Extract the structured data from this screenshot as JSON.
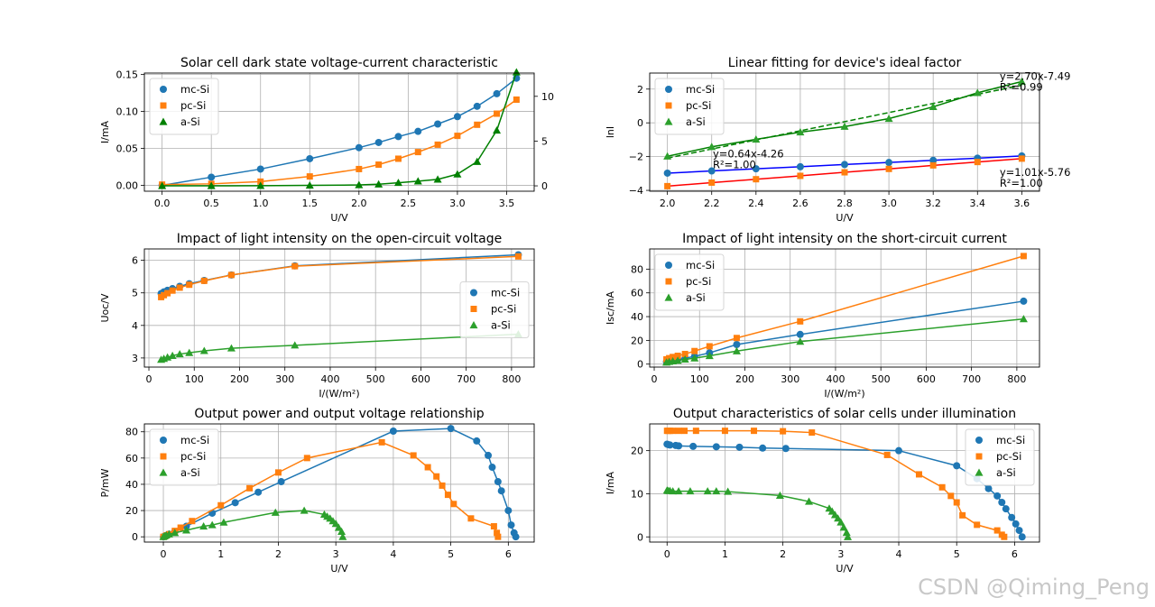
{
  "watermark": "CSDN @Qiming_Peng",
  "colors": {
    "mc": "#1f77b4",
    "pc": "#ff7f0e",
    "a": "#2ca02c",
    "darkgreen": "#008000",
    "blue": "#0000ff",
    "red": "#ff0000",
    "grid": "#b0b0b0"
  },
  "chart_data": [
    {
      "id": "dark",
      "type": "scatter",
      "title": "Solar cell dark state voltage-current characteristic",
      "xlabel": "U/V",
      "ylabel": "I/mA",
      "xlim": [
        -0.18,
        3.78
      ],
      "ylim": [
        -0.008,
        0.152
      ],
      "xticks": [
        0.0,
        0.5,
        1.0,
        1.5,
        2.0,
        2.5,
        3.0,
        3.5
      ],
      "xtick_labels": [
        "0.0",
        "0.5",
        "1.0",
        "1.5",
        "2.0",
        "2.5",
        "3.0",
        "3.5"
      ],
      "yticks": [
        0.0,
        0.05,
        0.1,
        0.15
      ],
      "ytick_labels": [
        "0.00",
        "0.05",
        "0.10",
        "0.15"
      ],
      "secondary_y": {
        "ylim": [
          -0.6,
          12.6
        ],
        "ticks": [
          0,
          5,
          10
        ],
        "tick_labels": [
          "0",
          "5",
          "10"
        ]
      },
      "legend": "upper-left",
      "series": [
        {
          "name": "mc-Si",
          "marker": "circle",
          "color": "#1f77b4",
          "line": true,
          "x": [
            0,
            0.5,
            1.0,
            1.5,
            2.0,
            2.2,
            2.4,
            2.6,
            2.8,
            3.0,
            3.2,
            3.4,
            3.6
          ],
          "y": [
            0.0,
            0.011,
            0.022,
            0.036,
            0.051,
            0.058,
            0.066,
            0.073,
            0.083,
            0.093,
            0.107,
            0.124,
            0.145
          ]
        },
        {
          "name": "pc-Si",
          "marker": "square",
          "color": "#ff7f0e",
          "line": true,
          "x": [
            0,
            0.5,
            1.0,
            1.5,
            2.0,
            2.2,
            2.4,
            2.6,
            2.8,
            3.0,
            3.2,
            3.4,
            3.6
          ],
          "y": [
            0.001,
            0.002,
            0.005,
            0.012,
            0.022,
            0.028,
            0.036,
            0.045,
            0.055,
            0.067,
            0.082,
            0.097,
            0.116
          ]
        },
        {
          "name": "a-Si",
          "marker": "triangle",
          "color": "#008000",
          "line": true,
          "axis": "secondary",
          "x": [
            0,
            0.5,
            1.0,
            1.5,
            2.0,
            2.2,
            2.4,
            2.6,
            2.8,
            3.0,
            3.2,
            3.4,
            3.6
          ],
          "y": [
            0.0,
            0.0,
            0.02,
            0.05,
            0.1,
            0.18,
            0.35,
            0.52,
            0.72,
            1.3,
            2.7,
            6.2,
            12.7
          ]
        }
      ]
    },
    {
      "id": "fit",
      "type": "scatter",
      "title": "Linear fitting for device's ideal factor",
      "xlabel": "U/V",
      "ylabel": "lnI",
      "xlim": [
        1.92,
        3.68
      ],
      "ylim": [
        -4.05,
        2.95
      ],
      "xticks": [
        2.0,
        2.2,
        2.4,
        2.6,
        2.8,
        3.0,
        3.2,
        3.4,
        3.6
      ],
      "xtick_labels": [
        "2.0",
        "2.2",
        "2.4",
        "2.6",
        "2.8",
        "3.0",
        "3.2",
        "3.4",
        "3.6"
      ],
      "yticks": [
        -4,
        -2,
        0,
        2
      ],
      "ytick_labels": [
        "−4",
        "−2",
        "0",
        "2"
      ],
      "legend": "upper-left",
      "series": [
        {
          "name": "mc-Si",
          "marker": "circle",
          "color": "#1f77b4",
          "fit_color": "#0000ff",
          "line": true,
          "x": [
            2.0,
            2.2,
            2.4,
            2.6,
            2.8,
            3.0,
            3.2,
            3.4,
            3.6
          ],
          "y": [
            -2.98,
            -2.85,
            -2.72,
            -2.6,
            -2.47,
            -2.35,
            -2.22,
            -2.09,
            -1.96
          ]
        },
        {
          "name": "pc-Si",
          "marker": "square",
          "color": "#ff7f0e",
          "fit_color": "#ff0000",
          "line": true,
          "x": [
            2.0,
            2.2,
            2.4,
            2.6,
            2.8,
            3.0,
            3.2,
            3.4,
            3.6
          ],
          "y": [
            -3.75,
            -3.54,
            -3.34,
            -3.14,
            -2.93,
            -2.73,
            -2.52,
            -2.32,
            -2.12
          ]
        },
        {
          "name": "a-Si",
          "marker": "triangle",
          "color": "#2ca02c",
          "fit_color": "#008000",
          "line": true,
          "dashed_fit": [
            [
              2.0,
              -2.09
            ],
            [
              3.6,
              2.23
            ]
          ],
          "x": [
            2.0,
            2.2,
            2.4,
            2.6,
            2.8,
            3.0,
            3.2,
            3.4,
            3.6
          ],
          "y": [
            -1.98,
            -1.42,
            -0.98,
            -0.55,
            -0.22,
            0.25,
            0.95,
            1.78,
            2.45
          ]
        }
      ],
      "annotations": [
        {
          "line1": "y=2.70x-7.49",
          "line2": "R²=0.99",
          "x": 3.5,
          "y": 2.55
        },
        {
          "line1": "y=0.64x-4.26",
          "line2": "R²=1.00",
          "x": 2.205,
          "y": -2.05
        },
        {
          "line1": "y=1.01x-5.76",
          "line2": "R²=1.00",
          "x": 3.5,
          "y": -3.15
        }
      ]
    },
    {
      "id": "voc",
      "type": "line",
      "title": "Impact of light intensity on the open-circuit voltage",
      "xlabel": "I/(W/m²)",
      "ylabel": "Uoc/V",
      "xlim": [
        -10,
        850
      ],
      "ylim": [
        2.72,
        6.35
      ],
      "xticks": [
        0,
        100,
        200,
        300,
        400,
        500,
        600,
        700,
        800
      ],
      "xtick_labels": [
        "0",
        "100",
        "200",
        "300",
        "400",
        "500",
        "600",
        "700",
        "800"
      ],
      "yticks": [
        3,
        4,
        5,
        6
      ],
      "ytick_labels": [
        "3",
        "4",
        "5",
        "6"
      ],
      "legend": "center-right",
      "series": [
        {
          "name": "mc-Si",
          "marker": "circle",
          "color": "#1f77b4",
          "line": true,
          "x": [
            27,
            33,
            41,
            52,
            68,
            89,
            122,
            182,
            322,
            815
          ],
          "y": [
            4.98,
            5.03,
            5.08,
            5.13,
            5.2,
            5.28,
            5.38,
            5.55,
            5.83,
            6.17
          ]
        },
        {
          "name": "pc-Si",
          "marker": "square",
          "color": "#ff7f0e",
          "line": true,
          "x": [
            27,
            33,
            41,
            52,
            68,
            89,
            122,
            182,
            322,
            815
          ],
          "y": [
            4.87,
            4.93,
            4.99,
            5.07,
            5.16,
            5.25,
            5.37,
            5.55,
            5.82,
            6.12
          ]
        },
        {
          "name": "a-Si",
          "marker": "triangle",
          "color": "#2ca02c",
          "line": true,
          "x": [
            27,
            33,
            41,
            52,
            68,
            89,
            122,
            182,
            322,
            815
          ],
          "y": [
            2.95,
            2.98,
            3.02,
            3.07,
            3.12,
            3.16,
            3.22,
            3.3,
            3.39,
            3.73
          ]
        }
      ]
    },
    {
      "id": "isc",
      "type": "line",
      "title": "Impact of light intensity on the short-circuit current",
      "xlabel": "I/(W/m²)",
      "ylabel": "Isc/mA",
      "xlim": [
        -10,
        850
      ],
      "ylim": [
        -2.5,
        97
      ],
      "xticks": [
        0,
        100,
        200,
        300,
        400,
        500,
        600,
        700,
        800
      ],
      "xtick_labels": [
        "0",
        "100",
        "200",
        "300",
        "400",
        "500",
        "600",
        "700",
        "800"
      ],
      "yticks": [
        0,
        20,
        40,
        60,
        80
      ],
      "ytick_labels": [
        "0",
        "20",
        "40",
        "60",
        "80"
      ],
      "legend": "upper-left",
      "series": [
        {
          "name": "mc-Si",
          "marker": "circle",
          "color": "#1f77b4",
          "line": true,
          "x": [
            27,
            33,
            41,
            52,
            68,
            89,
            122,
            182,
            322,
            815
          ],
          "y": [
            2,
            2.5,
            3,
            4,
            5,
            6.5,
            9.5,
            16.5,
            25,
            53
          ]
        },
        {
          "name": "pc-Si",
          "marker": "square",
          "color": "#ff7f0e",
          "line": true,
          "x": [
            27,
            33,
            41,
            52,
            68,
            89,
            122,
            182,
            322,
            815
          ],
          "y": [
            4,
            5,
            6,
            7,
            8.5,
            11,
            15,
            22,
            36,
            91
          ]
        },
        {
          "name": "a-Si",
          "marker": "triangle",
          "color": "#2ca02c",
          "line": true,
          "x": [
            27,
            33,
            41,
            52,
            68,
            89,
            122,
            182,
            322,
            815
          ],
          "y": [
            1.5,
            2,
            2.5,
            3,
            4,
            5,
            7,
            11,
            19,
            38
          ]
        }
      ]
    },
    {
      "id": "power",
      "type": "line",
      "title": "Output power and output voltage relationship",
      "xlabel": "U/V",
      "ylabel": "P/mW",
      "xlim": [
        -0.33,
        6.45
      ],
      "ylim": [
        -4,
        86
      ],
      "xticks": [
        0,
        1,
        2,
        3,
        4,
        5,
        6
      ],
      "xtick_labels": [
        "0",
        "1",
        "2",
        "3",
        "4",
        "5",
        "6"
      ],
      "yticks": [
        0,
        20,
        40,
        60,
        80
      ],
      "ytick_labels": [
        "0",
        "20",
        "40",
        "60",
        "80"
      ],
      "legend": "upper-left",
      "series": [
        {
          "name": "mc-Si",
          "marker": "circle",
          "color": "#1f77b4",
          "line": true,
          "x": [
            0,
            0.05,
            0.1,
            0.2,
            0.4,
            0.85,
            1.25,
            1.65,
            2.05,
            4.0,
            5.0,
            5.45,
            5.65,
            5.72,
            5.82,
            5.88,
            6.0,
            6.05,
            6.1,
            6.13
          ],
          "y": [
            0,
            1,
            2,
            4,
            8,
            18,
            26,
            34,
            42,
            80.5,
            82.5,
            73,
            62,
            53,
            42,
            35,
            20,
            9,
            3,
            0
          ]
        },
        {
          "name": "pc-Si",
          "marker": "square",
          "color": "#ff7f0e",
          "line": true,
          "x": [
            0,
            0.05,
            0.1,
            0.2,
            0.3,
            0.5,
            1.0,
            1.5,
            2.0,
            2.5,
            3.8,
            4.35,
            4.6,
            4.75,
            4.85,
            4.95,
            5.05,
            5.35,
            5.75,
            5.8,
            5.82
          ],
          "y": [
            0,
            1,
            2,
            4.5,
            7,
            12,
            24,
            37,
            49,
            60,
            72,
            62,
            53,
            46,
            39,
            32,
            25,
            14,
            8,
            3,
            0
          ]
        },
        {
          "name": "a-Si",
          "marker": "triangle",
          "color": "#2ca02c",
          "line": true,
          "x": [
            0,
            0.02,
            0.05,
            0.1,
            0.2,
            0.4,
            0.7,
            0.85,
            1.05,
            1.95,
            2.45,
            2.8,
            2.85,
            2.9,
            2.95,
            3.0,
            3.05,
            3.1,
            3.12
          ],
          "y": [
            0,
            0.5,
            1.2,
            2,
            3,
            5,
            8,
            9,
            11,
            18.5,
            20,
            17,
            15.5,
            14,
            12,
            10,
            7,
            4,
            0
          ]
        }
      ]
    },
    {
      "id": "iv",
      "type": "line",
      "title": "Output characteristics of solar cells under illumination",
      "xlabel": "U/V",
      "ylabel": "I/mA",
      "xlim": [
        -0.3,
        6.43
      ],
      "ylim": [
        -1.2,
        26.2
      ],
      "xticks": [
        0,
        1,
        2,
        3,
        4,
        5,
        6
      ],
      "xtick_labels": [
        "0",
        "1",
        "2",
        "3",
        "4",
        "5",
        "6"
      ],
      "yticks": [
        0,
        10,
        20
      ],
      "ytick_labels": [
        "0",
        "10",
        "20"
      ],
      "legend": "upper-right",
      "series": [
        {
          "name": "mc-Si",
          "marker": "circle",
          "color": "#1f77b4",
          "line": true,
          "x": [
            0,
            0.02,
            0.05,
            0.15,
            0.2,
            0.45,
            0.85,
            1.25,
            1.65,
            2.05,
            4.0,
            5.0,
            5.35,
            5.55,
            5.7,
            5.78,
            5.85,
            5.95,
            6.02,
            6.08,
            6.13
          ],
          "y": [
            21.5,
            21.4,
            21.3,
            21.2,
            21.1,
            21.0,
            20.9,
            20.8,
            20.6,
            20.5,
            20.0,
            16.5,
            13.5,
            11.2,
            9.5,
            8.0,
            6.5,
            4.5,
            3.0,
            1.5,
            0
          ]
        },
        {
          "name": "pc-Si",
          "marker": "square",
          "color": "#ff7f0e",
          "line": true,
          "x": [
            0,
            0.02,
            0.05,
            0.1,
            0.2,
            0.3,
            0.5,
            1.0,
            1.5,
            2.0,
            2.5,
            3.8,
            4.35,
            4.75,
            4.9,
            5.0,
            5.1,
            5.35,
            5.7,
            5.78,
            5.82
          ],
          "y": [
            24.6,
            24.6,
            24.6,
            24.6,
            24.6,
            24.6,
            24.6,
            24.6,
            24.6,
            24.5,
            24.2,
            19.0,
            14.5,
            11.5,
            9.5,
            8.0,
            5.0,
            2.8,
            1.5,
            0.5,
            0
          ]
        },
        {
          "name": "a-Si",
          "marker": "triangle",
          "color": "#2ca02c",
          "line": true,
          "x": [
            0,
            0.02,
            0.05,
            0.1,
            0.2,
            0.4,
            0.7,
            0.85,
            1.05,
            1.95,
            2.45,
            2.8,
            2.85,
            2.9,
            2.95,
            3.0,
            3.05,
            3.1,
            3.12
          ],
          "y": [
            10.8,
            10.7,
            10.7,
            10.6,
            10.6,
            10.6,
            10.6,
            10.6,
            10.5,
            9.6,
            8.2,
            6.6,
            5.9,
            5.1,
            4.3,
            3.4,
            2.2,
            1.0,
            0
          ]
        }
      ]
    }
  ]
}
